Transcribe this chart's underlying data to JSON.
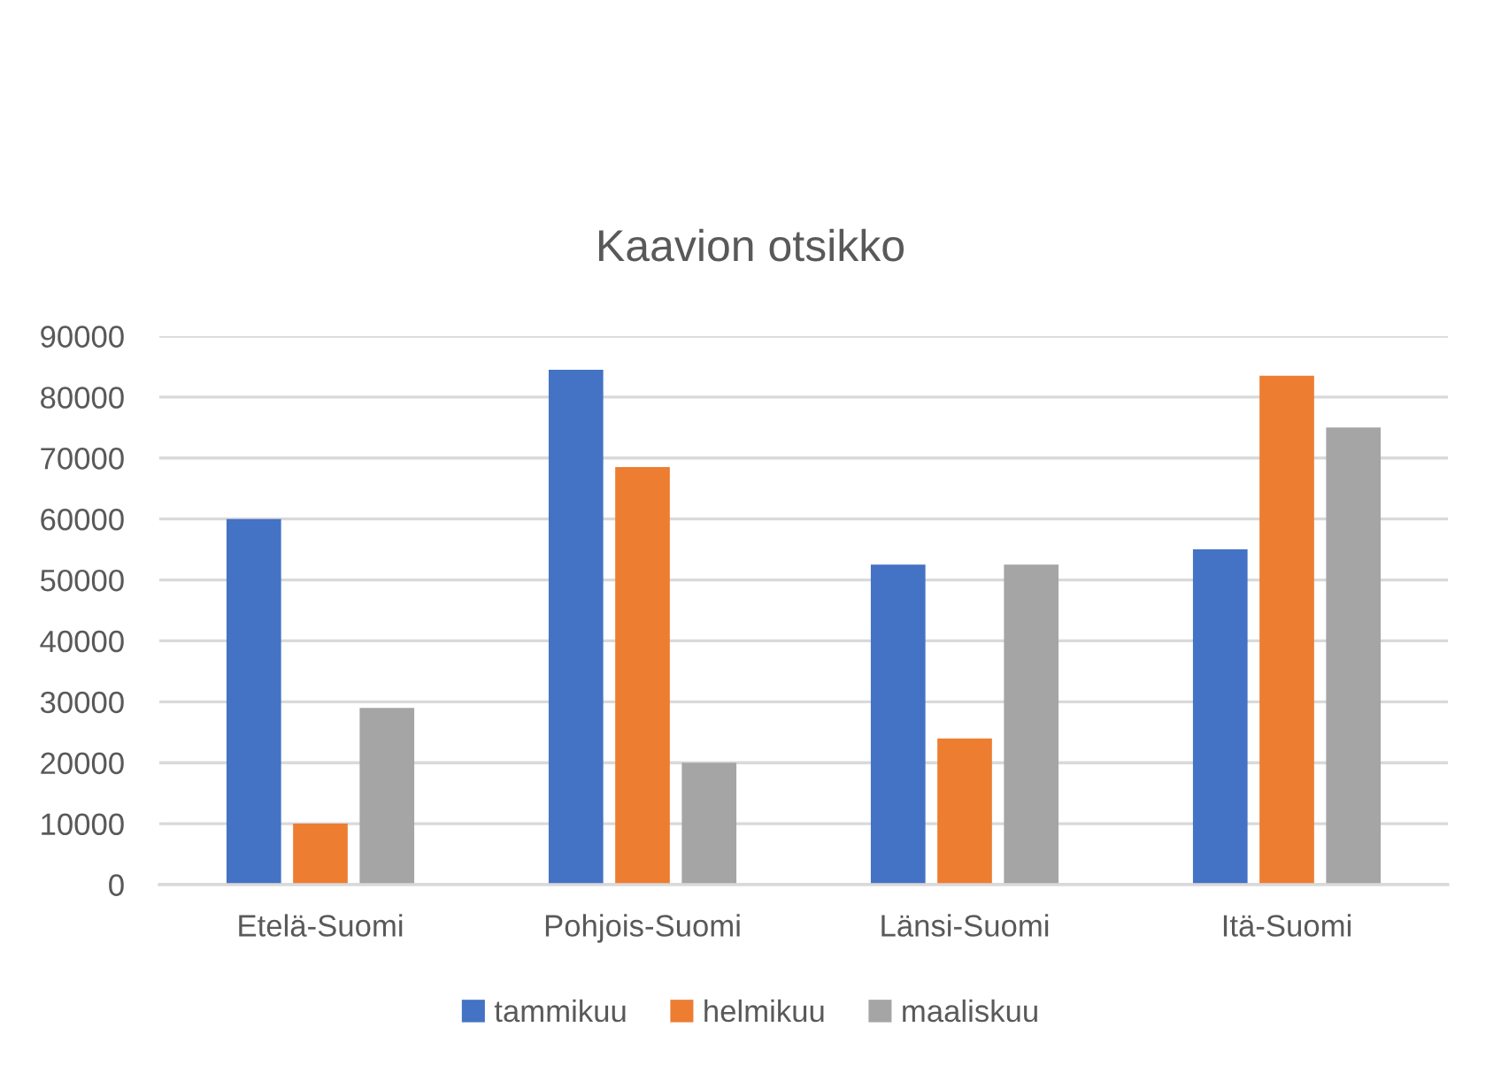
{
  "chart_data": {
    "type": "bar",
    "title": "Kaavion otsikko",
    "categories": [
      "Etelä-Suomi",
      "Pohjois-Suomi",
      "Länsi-Suomi",
      "Itä-Suomi"
    ],
    "series": [
      {
        "name": "tammikuu",
        "color": "#4472c4",
        "values": [
          60000,
          84500,
          52500,
          55000
        ]
      },
      {
        "name": "helmikuu",
        "color": "#ed7d31",
        "values": [
          10000,
          68500,
          24000,
          83500
        ]
      },
      {
        "name": "maaliskuu",
        "color": "#a5a5a5",
        "values": [
          29000,
          20000,
          52500,
          75000
        ]
      }
    ],
    "ylim": [
      0,
      90000
    ],
    "yticks": [
      0,
      10000,
      20000,
      30000,
      40000,
      50000,
      60000,
      70000,
      80000,
      90000
    ],
    "grid": "y",
    "legend": "bottom"
  }
}
